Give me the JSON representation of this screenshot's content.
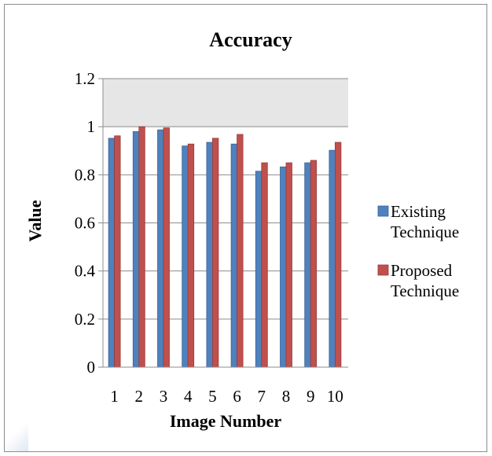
{
  "chart_data": {
    "type": "bar",
    "title": "Accuracy",
    "xlabel": "Image Number",
    "ylabel": "Value",
    "categories": [
      "1",
      "2",
      "3",
      "4",
      "5",
      "6",
      "7",
      "8",
      "9",
      "10"
    ],
    "ylim": [
      0,
      1.2
    ],
    "yticks": [
      "0",
      "0.2",
      "0.4",
      "0.6",
      "0.8",
      "1",
      "1.2"
    ],
    "grid": true,
    "legend": "right",
    "series": [
      {
        "name_lines": [
          "Existing",
          "Technique"
        ],
        "color": "#4f81bd",
        "values": [
          0.952,
          0.98,
          0.987,
          0.92,
          0.935,
          0.928,
          0.815,
          0.833,
          0.85,
          0.902
        ]
      },
      {
        "name_lines": [
          "Proposed",
          "Technique"
        ],
        "color": "#c0504d",
        "values": [
          0.962,
          1.0,
          0.995,
          0.928,
          0.952,
          0.968,
          0.85,
          0.85,
          0.86,
          0.935
        ]
      }
    ],
    "plot_background_above_1": "#e6e6e6",
    "gridline_color": "#8c8c8c"
  }
}
